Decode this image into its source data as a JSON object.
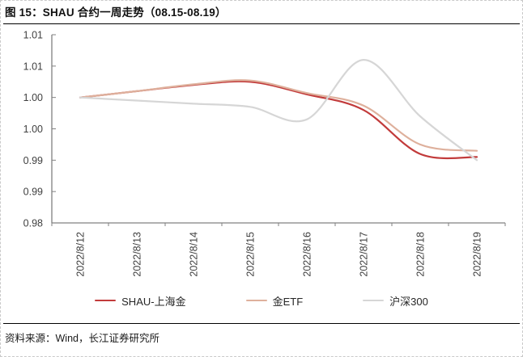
{
  "figure": {
    "title": "图 15：SHAU 合约一周走势（08.15-08.19）",
    "source": "资料来源：Wind，长江证券研究所"
  },
  "colors": {
    "series_shau": "#C23B3B",
    "series_etf": "#DEB09C",
    "series_hs300": "#D6D6D6",
    "axis": "#808080",
    "tick_text": "#3f3f3f"
  },
  "chart_data": {
    "type": "line",
    "title": "图 15：SHAU 合约一周走势（08.15-08.19）",
    "categories": [
      "2022/8/12",
      "2022/8/13",
      "2022/8/14",
      "2022/8/15",
      "2022/8/16",
      "2022/8/17",
      "2022/8/18",
      "2022/8/19"
    ],
    "series": [
      {
        "name": "SHAU-上海金",
        "color_key": "series_shau",
        "values": [
          1.0,
          1.001,
          1.002,
          1.0025,
          1.0005,
          0.998,
          0.991,
          0.9905
        ]
      },
      {
        "name": "金ETF",
        "color_key": "series_etf",
        "values": [
          1.0,
          1.001,
          1.0021,
          1.0027,
          1.0007,
          0.9987,
          0.9925,
          0.9915
        ]
      },
      {
        "name": "沪深300",
        "color_key": "series_hs300",
        "values": [
          1.0,
          0.9995,
          0.999,
          0.9985,
          0.9965,
          1.006,
          0.997,
          0.99
        ]
      }
    ],
    "xlabel": "",
    "ylabel": "",
    "ylim": [
      0.98,
      1.01
    ],
    "y_tick_step": 0.005,
    "y_tick_labels_top_to_bottom": [
      "1.01",
      "1.01",
      "1.00",
      "1.00",
      "0.99",
      "0.99",
      "0.98"
    ],
    "grid": false,
    "smooth": true,
    "legend_position": "bottom"
  }
}
